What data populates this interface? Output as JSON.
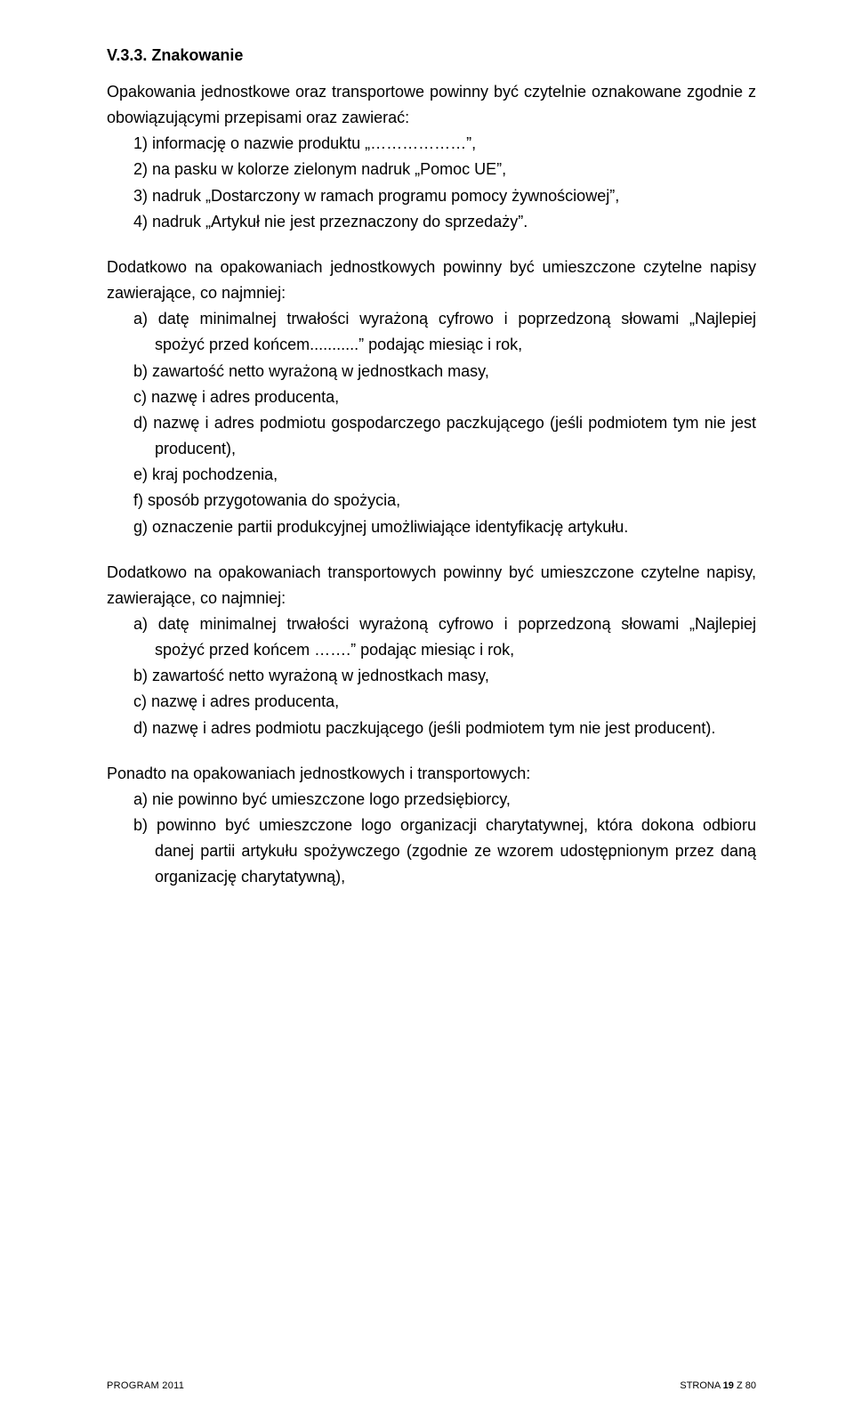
{
  "heading": "V.3.3. Znakowanie",
  "intro_para": "Opakowania jednostkowe oraz transportowe powinny być czytelnie oznakowane zgodnie z obowiązującymi przepisami oraz zawierać:",
  "list1": {
    "i1": "1) informację o nazwie produktu „………………”,",
    "i2": "2) na pasku w kolorze zielonym nadruk „Pomoc UE”,",
    "i3": "3) nadruk „Dostarczony w ramach programu pomocy żywnościowej”,",
    "i4": "4) nadruk „Artykuł nie jest przeznaczony do sprzedaży”."
  },
  "block2_lead": "Dodatkowo na opakowaniach jednostkowych powinny być umieszczone czytelne napisy zawierające, co najmniej:",
  "list2": {
    "a": "a) datę minimalnej trwałości wyrażoną cyfrowo i poprzedzoną słowami „Najlepiej spożyć przed końcem...........” podając miesiąc i rok,",
    "b": "b) zawartość netto wyrażoną w jednostkach masy,",
    "c": "c) nazwę i adres producenta,",
    "d": "d) nazwę i adres podmiotu gospodarczego paczkującego (jeśli podmiotem tym nie jest producent),",
    "e": "e) kraj pochodzenia,",
    "f": "f) sposób przygotowania do spożycia,",
    "g": "g) oznaczenie partii produkcyjnej umożliwiające identyfikację artykułu."
  },
  "block3_lead": "Dodatkowo na opakowaniach transportowych powinny być umieszczone czytelne napisy, zawierające, co najmniej:",
  "list3": {
    "a": "a) datę minimalnej trwałości wyrażoną cyfrowo i poprzedzoną słowami „Najlepiej spożyć przed końcem …….” podając miesiąc i rok,",
    "b": "b) zawartość netto wyrażoną w jednostkach masy,",
    "c": "c) nazwę i adres producenta,",
    "d": "d) nazwę i adres podmiotu paczkującego (jeśli podmiotem tym nie jest producent)."
  },
  "block4_lead": "Ponadto na opakowaniach jednostkowych i transportowych:",
  "list4": {
    "a": "a) nie powinno być umieszczone logo przedsiębiorcy,",
    "b": "b) powinno być umieszczone logo organizacji charytatywnej, która dokona odbioru danej partii artykułu spożywczego (zgodnie ze wzorem udostępnionym przez daną organizację charytatywną),"
  },
  "footer": {
    "left": "PROGRAM 2011",
    "right_prefix": "STRONA ",
    "right_page": "19",
    "right_suffix": " Z 80"
  }
}
